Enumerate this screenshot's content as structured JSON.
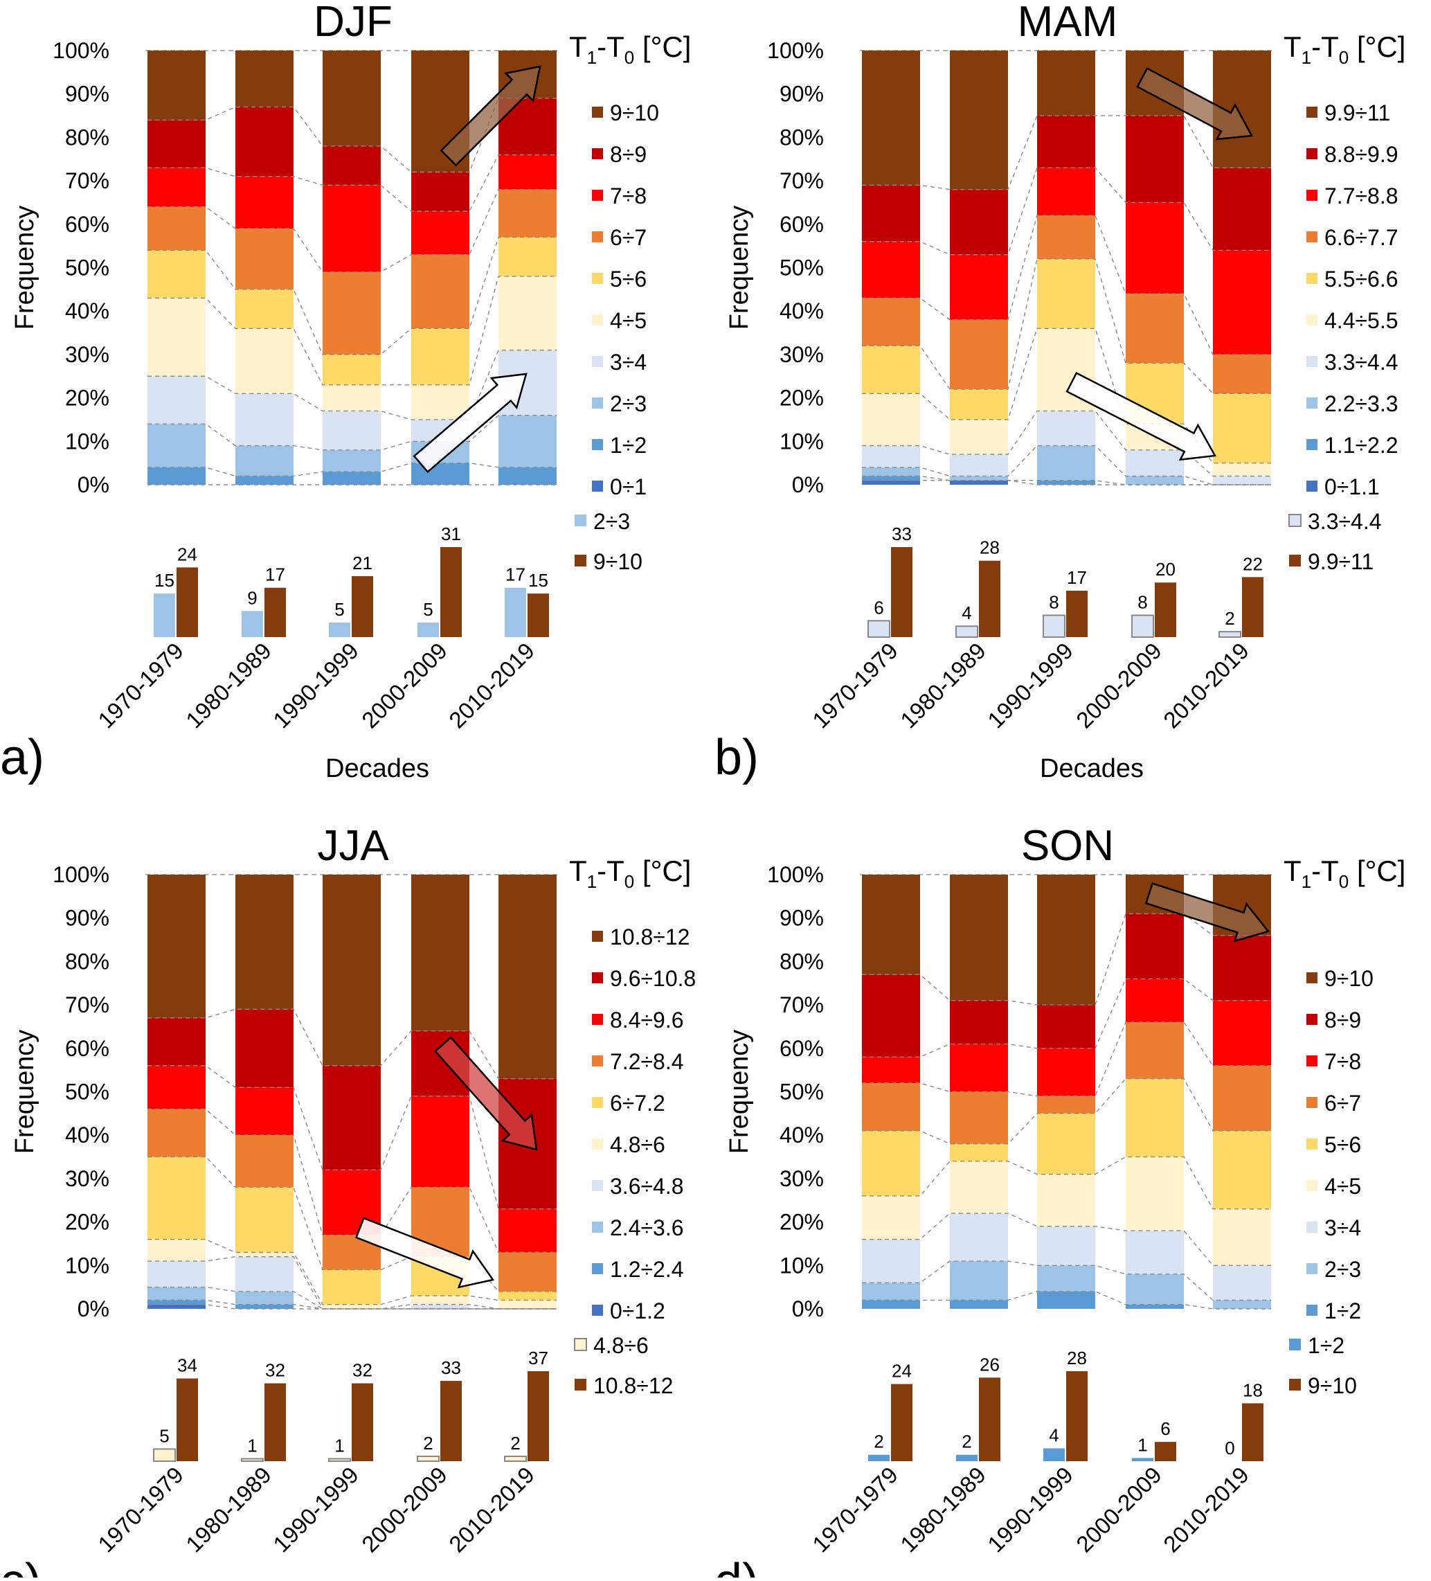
{
  "decades": [
    "1970-1979",
    "1980-1989",
    "1990-1999",
    "2000-2009",
    "2010-2019"
  ],
  "y_ticks": [
    "0%",
    "10%",
    "20%",
    "30%",
    "40%",
    "50%",
    "60%",
    "70%",
    "80%",
    "90%",
    "100%"
  ],
  "ylabel": "Frequency",
  "xlabel": "Decades",
  "legend_title_main": "T",
  "legend_title_sub1": "1",
  "legend_title_mid": "-T",
  "legend_title_sub0": "0",
  "legend_title_unit": " [°C]",
  "colors": [
    "#4472C4",
    "#5B9BD5",
    "#9DC3E6",
    "#DAE3F3",
    "#FFF2CC",
    "#FFD966",
    "#ED7D31",
    "#FF0000",
    "#C00000",
    "#843C0C"
  ],
  "chart_data": [
    {
      "type": "bar",
      "panel_label": "a)",
      "title": "DJF",
      "categories": [
        "1970-1979",
        "1980-1989",
        "1990-1999",
        "2000-2009",
        "2010-2019"
      ],
      "ylim": [
        0,
        100
      ],
      "bins": [
        "0÷1",
        "1÷2",
        "2÷3",
        "3÷4",
        "4÷5",
        "5÷6",
        "6÷7",
        "7÷8",
        "8÷9",
        "9÷10"
      ],
      "stacked_percent": [
        [
          0,
          4,
          10,
          11,
          18,
          11,
          10,
          9,
          11,
          16
        ],
        [
          0,
          2,
          7,
          12,
          15,
          9,
          14,
          12,
          16,
          13
        ],
        [
          0,
          3,
          5,
          9,
          6,
          7,
          19,
          20,
          9,
          22
        ],
        [
          0,
          5,
          5,
          5,
          8,
          13,
          17,
          10,
          9,
          28
        ],
        [
          0,
          4,
          12,
          15,
          17,
          9,
          11,
          8,
          13,
          11
        ]
      ],
      "counts": {
        "series": [
          {
            "name": "2÷3",
            "values": [
              15,
              9,
              5,
              5,
              17
            ]
          },
          {
            "name": "9÷10",
            "values": [
              24,
              17,
              21,
              31,
              15
            ]
          }
        ],
        "ymax": 31
      }
    },
    {
      "type": "bar",
      "panel_label": "b)",
      "title": "MAM",
      "categories": [
        "1970-1979",
        "1980-1989",
        "1990-1999",
        "2000-2009",
        "2010-2019"
      ],
      "ylim": [
        0,
        100
      ],
      "bins": [
        "0÷1.1",
        "1.1÷2.2",
        "2.2÷3.3",
        "3.3÷4.4",
        "4.4÷5.5",
        "5.5÷6.6",
        "6.6÷7.7",
        "7.7÷8.8",
        "8.8÷9.9",
        "9.9÷11"
      ],
      "stacked_percent": [
        [
          1,
          1,
          2,
          5,
          12,
          11,
          11,
          13,
          13,
          31
        ],
        [
          1,
          0,
          1,
          5,
          8,
          7,
          16,
          15,
          15,
          32
        ],
        [
          0,
          1,
          8,
          8,
          19,
          16,
          10,
          11,
          12,
          15
        ],
        [
          0,
          0,
          2,
          6,
          6,
          14,
          16,
          21,
          20,
          15
        ],
        [
          0,
          0,
          0,
          2,
          3,
          16,
          9,
          24,
          19,
          27
        ]
      ],
      "counts": {
        "series": [
          {
            "name": "3.3÷4.4",
            "values": [
              6,
              4,
              8,
              8,
              2
            ]
          },
          {
            "name": "9.9÷11",
            "values": [
              33,
              28,
              17,
              20,
              22
            ]
          }
        ],
        "ymax": 33
      }
    },
    {
      "type": "bar",
      "panel_label": "c)",
      "title": "JJA",
      "categories": [
        "1970-1979",
        "1980-1989",
        "1990-1999",
        "2000-2009",
        "2010-2019"
      ],
      "ylim": [
        0,
        100
      ],
      "bins": [
        "0÷1.2",
        "1.2÷2.4",
        "2.4÷3.6",
        "3.6÷4.8",
        "4.8÷6",
        "6÷7.2",
        "7.2÷8.4",
        "8.4÷9.6",
        "9.6÷10.8",
        "10.8÷12"
      ],
      "stacked_percent": [
        [
          1,
          1,
          3,
          6,
          5,
          19,
          11,
          10,
          11,
          33
        ],
        [
          0,
          1,
          3,
          8,
          1,
          15,
          12,
          11,
          18,
          31
        ],
        [
          0,
          0,
          0,
          0,
          1,
          8,
          8,
          15,
          24,
          44
        ],
        [
          0,
          0,
          0,
          1,
          2,
          9,
          16,
          21,
          15,
          36
        ],
        [
          0,
          0,
          0,
          0,
          2,
          2,
          9,
          10,
          30,
          47
        ]
      ],
      "counts": {
        "series": [
          {
            "name": "4.8÷6",
            "values": [
              5,
              1,
              1,
              2,
              2
            ]
          },
          {
            "name": "10.8÷12",
            "values": [
              34,
              32,
              32,
              33,
              37
            ]
          }
        ],
        "ymax": 37
      }
    },
    {
      "type": "bar",
      "panel_label": "d)",
      "title": "SON",
      "categories": [
        "1970-1979",
        "1980-1989",
        "1990-1999",
        "2000-2009",
        "2010-2019"
      ],
      "ylim": [
        0,
        100
      ],
      "bins": [
        "1÷2",
        "2÷3",
        "3÷4",
        "4÷5",
        "5÷6",
        "6÷7",
        "7÷8",
        "8÷9",
        "9÷10"
      ],
      "stacked_percent": [
        [
          2,
          4,
          10,
          10,
          15,
          11,
          6,
          19,
          23
        ],
        [
          2,
          9,
          11,
          12,
          4,
          12,
          11,
          10,
          29
        ],
        [
          4,
          6,
          9,
          12,
          14,
          4,
          11,
          10,
          30
        ],
        [
          1,
          7,
          10,
          17,
          18,
          13,
          10,
          15,
          9
        ],
        [
          0,
          2,
          8,
          13,
          18,
          15,
          15,
          15,
          14
        ]
      ],
      "counts": {
        "series": [
          {
            "name": "1÷2",
            "values": [
              2,
              2,
              4,
              1,
              0
            ]
          },
          {
            "name": "9÷10",
            "values": [
              24,
              26,
              28,
              6,
              18
            ]
          }
        ],
        "ymax": 28
      }
    }
  ]
}
